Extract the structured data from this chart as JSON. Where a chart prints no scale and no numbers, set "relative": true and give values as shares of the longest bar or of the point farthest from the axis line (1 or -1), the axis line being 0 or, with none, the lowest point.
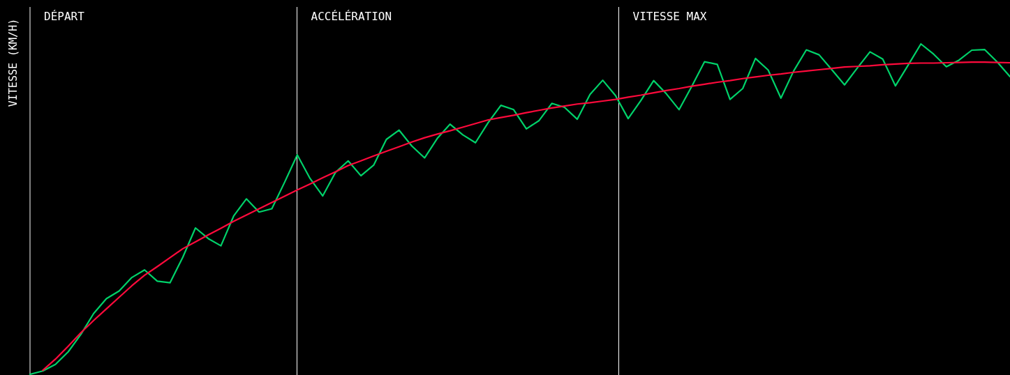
{
  "chart_data": {
    "type": "line",
    "ylabel": "VITESSE (KM/H)",
    "relative": true,
    "categories": [
      null,
      null,
      null,
      null,
      null,
      null,
      null,
      null,
      null,
      null,
      null,
      null,
      null,
      null,
      null,
      null,
      null,
      null,
      null,
      null,
      null,
      null,
      null,
      null,
      null,
      null,
      null,
      null,
      null,
      null,
      null,
      null,
      null,
      null,
      null,
      null,
      null,
      null,
      null,
      null,
      null,
      null,
      null,
      null,
      null,
      null,
      null,
      null,
      null,
      null,
      null,
      null,
      null,
      null,
      null,
      null,
      null,
      null,
      null,
      null,
      null,
      null,
      null,
      null,
      null,
      null,
      null,
      null,
      null,
      null,
      null,
      null,
      null,
      null,
      null,
      null,
      null,
      null
    ],
    "annotations": [
      "DÉPART",
      "ACCÉLÉRATION",
      "VITESSE MAX"
    ],
    "series": [
      {
        "color": "#00d26a",
        "values": [
          0,
          0.01,
          0.03,
          0.068,
          0.121,
          0.184,
          0.229,
          0.252,
          0.293,
          0.316,
          0.282,
          0.277,
          0.354,
          0.443,
          0.411,
          0.389,
          0.479,
          0.531,
          0.491,
          0.501,
          0.581,
          0.664,
          0.593,
          0.54,
          0.611,
          0.646,
          0.601,
          0.633,
          0.711,
          0.739,
          0.691,
          0.655,
          0.714,
          0.757,
          0.725,
          0.701,
          0.762,
          0.814,
          0.801,
          0.743,
          0.768,
          0.82,
          0.808,
          0.772,
          0.847,
          0.89,
          0.844,
          0.774,
          0.829,
          0.889,
          0.849,
          0.801,
          0.872,
          0.946,
          0.938,
          0.832,
          0.865,
          0.956,
          0.921,
          0.836,
          0.918,
          0.982,
          0.967,
          0.922,
          0.876,
          0.927,
          0.976,
          0.954,
          0.873,
          0.936,
          1,
          0.969,
          0.931,
          0.951,
          0.981,
          0.983,
          0.945,
          0.901
        ]
      },
      {
        "color": "#ff0a3c",
        "values": [
          null,
          0.012,
          0.046,
          0.085,
          0.126,
          0.163,
          0.198,
          0.233,
          0.268,
          0.3,
          0.326,
          0.353,
          0.38,
          0.401,
          0.422,
          0.442,
          0.463,
          0.482,
          0.501,
          0.52,
          0.539,
          0.558,
          0.576,
          0.595,
          0.613,
          0.632,
          0.646,
          0.661,
          0.675,
          0.689,
          0.703,
          0.716,
          0.727,
          0.737,
          0.748,
          0.759,
          0.77,
          0.777,
          0.784,
          0.792,
          0.799,
          0.806,
          0.812,
          0.818,
          0.822,
          0.827,
          0.832,
          0.839,
          0.845,
          0.852,
          0.859,
          0.865,
          0.872,
          0.878,
          0.884,
          0.889,
          0.895,
          0.9,
          0.905,
          0.909,
          0.914,
          0.918,
          0.922,
          0.926,
          0.93,
          0.932,
          0.934,
          0.937,
          0.939,
          0.941,
          0.942,
          0.942,
          0.943,
          0.944,
          0.945,
          0.945,
          0.944,
          0.943
        ]
      }
    ]
  }
}
